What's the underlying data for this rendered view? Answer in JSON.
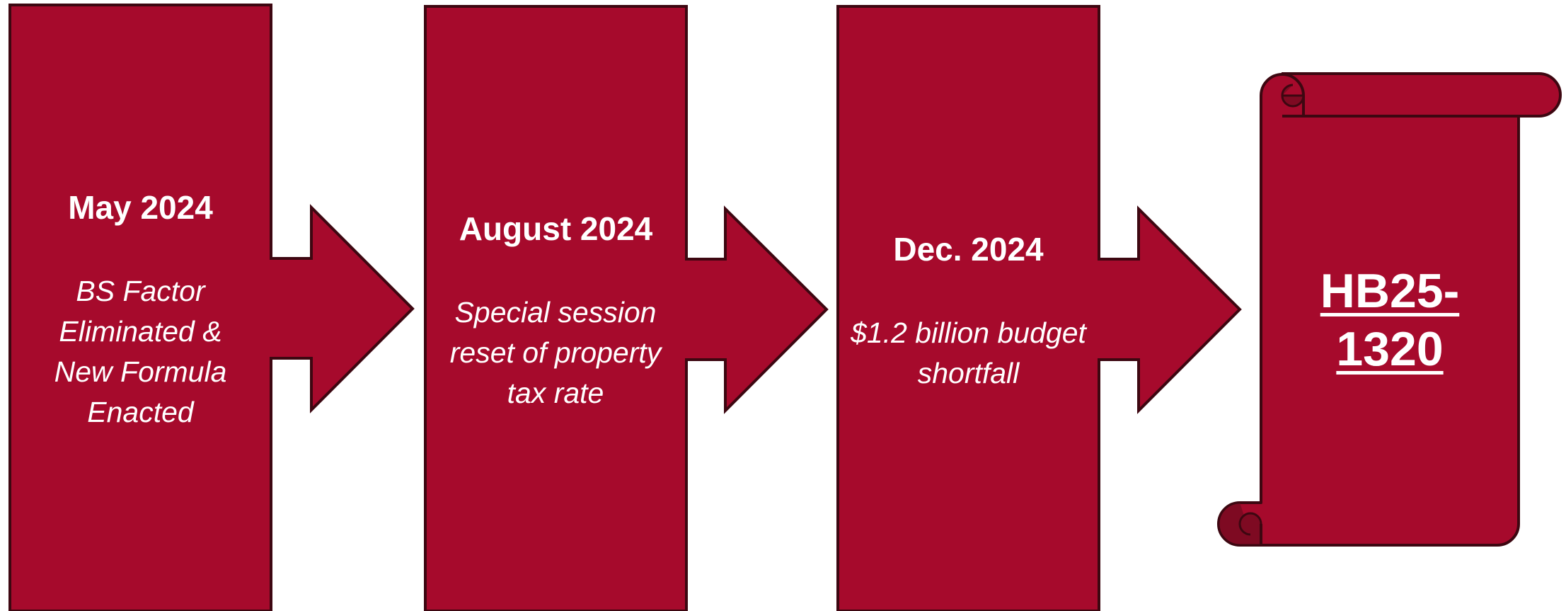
{
  "colors": {
    "fill": "#A60A2C",
    "stroke": "#3D0711",
    "scroll_curl": "#7E0A22",
    "text": "#FFFFFF"
  },
  "steps": [
    {
      "date": "May 2024",
      "description": "BS Factor Eliminated & New Formula Enacted"
    },
    {
      "date": "August 2024",
      "description": "Special session reset of property tax rate"
    },
    {
      "date": "Dec. 2024",
      "description": "$1.2 billion budget shortfall"
    }
  ],
  "result": {
    "bill": "HB25-1320"
  }
}
